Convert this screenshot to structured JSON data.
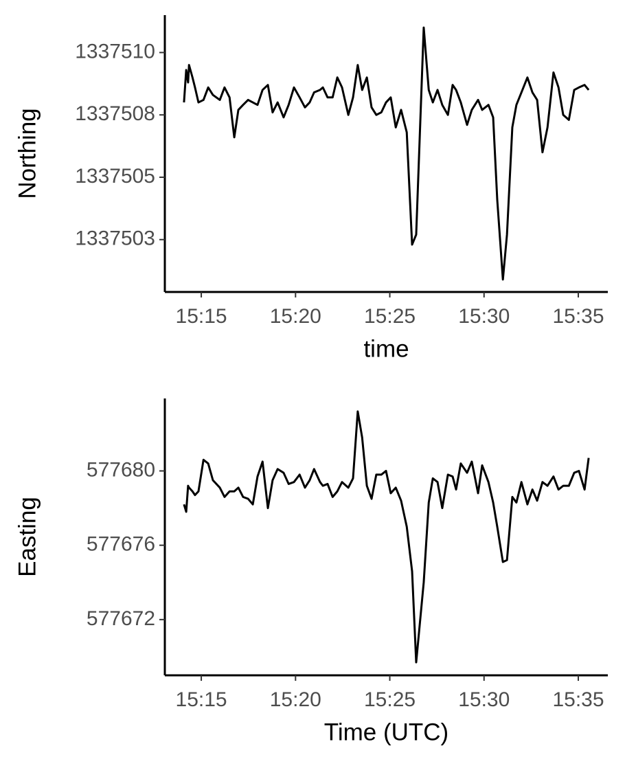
{
  "chart_data": [
    {
      "type": "line",
      "ylabel": "Northing",
      "xlabel": "time",
      "color": "#000000",
      "x": [
        "15:14:05",
        "15:14:12",
        "15:14:18",
        "15:14:21",
        "15:14:32",
        "15:14:40",
        "15:14:51",
        "15:15:07",
        "15:15:22",
        "15:15:37",
        "15:15:59",
        "15:16:14",
        "15:16:30",
        "15:16:45",
        "15:16:58",
        "15:17:13",
        "15:17:29",
        "15:17:44",
        "15:17:59",
        "15:18:15",
        "15:18:32",
        "15:18:47",
        "15:19:03",
        "15:19:22",
        "15:19:38",
        "15:19:55",
        "15:20:13",
        "15:20:30",
        "15:20:45",
        "15:20:59",
        "15:21:18",
        "15:21:27",
        "15:21:42",
        "15:21:58",
        "15:22:13",
        "15:22:28",
        "15:22:48",
        "15:23:03",
        "15:23:18",
        "15:23:32",
        "15:23:47",
        "15:24:02",
        "15:24:17",
        "15:24:33",
        "15:24:48",
        "15:25:03",
        "15:25:19",
        "15:25:36",
        "15:25:54",
        "15:26:11",
        "15:26:24",
        "15:26:48",
        "15:27:04",
        "15:27:17",
        "15:27:32",
        "15:27:47",
        "15:28:05",
        "15:28:20",
        "15:28:31",
        "15:28:46",
        "15:29:06",
        "15:29:21",
        "15:29:41",
        "15:29:54",
        "15:30:14",
        "15:30:29",
        "15:30:42",
        "15:31:00",
        "15:31:13",
        "15:31:30",
        "15:31:43",
        "15:31:59",
        "15:32:18",
        "15:32:34",
        "15:32:49",
        "15:33:06",
        "15:33:22",
        "15:33:41",
        "15:33:57",
        "15:34:12",
        "15:34:30",
        "15:34:47",
        "15:35:02",
        "15:35:20",
        "15:35:33"
      ],
      "values": [
        1337508.0,
        1337509.3,
        1337508.8,
        1337509.5,
        1337509.0,
        1337508.6,
        1337508.0,
        1337508.1,
        1337508.6,
        1337508.3,
        1337508.1,
        1337508.6,
        1337508.2,
        1337506.6,
        1337507.7,
        1337507.9,
        1337508.1,
        1337508.0,
        1337507.9,
        1337508.5,
        1337508.7,
        1337507.6,
        1337508.0,
        1337507.4,
        1337507.9,
        1337508.6,
        1337508.2,
        1337507.8,
        1337508.0,
        1337508.4,
        1337508.5,
        1337508.6,
        1337508.2,
        1337508.2,
        1337509.0,
        1337508.6,
        1337507.5,
        1337508.2,
        1337509.5,
        1337508.5,
        1337509.0,
        1337507.8,
        1337507.5,
        1337507.6,
        1337508.0,
        1337508.2,
        1337507.0,
        1337507.7,
        1337506.8,
        1337502.3,
        1337502.7,
        1337511.0,
        1337508.5,
        1337508.0,
        1337508.5,
        1337507.9,
        1337507.5,
        1337508.7,
        1337508.5,
        1337508.0,
        1337507.1,
        1337507.7,
        1337508.1,
        1337507.7,
        1337507.9,
        1337507.4,
        1337504.1,
        1337500.9,
        1337502.7,
        1337507.0,
        1337507.9,
        1337508.4,
        1337509.0,
        1337508.4,
        1337508.1,
        1337506.0,
        1337507.0,
        1337509.2,
        1337508.6,
        1337507.5,
        1337507.3,
        1337508.5,
        1337508.6,
        1337508.7,
        1337508.5
      ],
      "xlim": [
        "15:13:04",
        "15:36:34"
      ],
      "xticks": [
        "15:15",
        "15:20",
        "15:25",
        "15:30",
        "15:35"
      ],
      "ylim": [
        1337500.4,
        1337511.5
      ],
      "yticks": [
        {
          "value": 1337502.5,
          "label": "1337503"
        },
        1337505,
        {
          "value": 1337507.5,
          "label": "1337508"
        },
        1337510
      ]
    },
    {
      "type": "line",
      "ylabel": "Easting",
      "xlabel": "Time (UTC)",
      "color": "#000000",
      "x": [
        "15:14:05",
        "15:14:12",
        "15:14:18",
        "15:14:21",
        "15:14:32",
        "15:14:40",
        "15:14:51",
        "15:15:07",
        "15:15:22",
        "15:15:37",
        "15:15:59",
        "15:16:14",
        "15:16:30",
        "15:16:45",
        "15:16:58",
        "15:17:13",
        "15:17:29",
        "15:17:44",
        "15:17:59",
        "15:18:15",
        "15:18:32",
        "15:18:47",
        "15:19:03",
        "15:19:22",
        "15:19:38",
        "15:19:55",
        "15:20:13",
        "15:20:30",
        "15:20:45",
        "15:20:59",
        "15:21:18",
        "15:21:27",
        "15:21:42",
        "15:21:58",
        "15:22:13",
        "15:22:28",
        "15:22:48",
        "15:23:03",
        "15:23:18",
        "15:23:32",
        "15:23:47",
        "15:24:02",
        "15:24:17",
        "15:24:33",
        "15:24:48",
        "15:25:03",
        "15:25:19",
        "15:25:36",
        "15:25:54",
        "15:26:11",
        "15:26:24",
        "15:26:48",
        "15:27:04",
        "15:27:17",
        "15:27:32",
        "15:27:47",
        "15:28:05",
        "15:28:20",
        "15:28:31",
        "15:28:46",
        "15:29:06",
        "15:29:21",
        "15:29:41",
        "15:29:54",
        "15:30:14",
        "15:30:29",
        "15:30:42",
        "15:31:00",
        "15:31:13",
        "15:31:30",
        "15:31:43",
        "15:31:59",
        "15:32:18",
        "15:32:34",
        "15:32:49",
        "15:33:06",
        "15:33:22",
        "15:33:41",
        "15:33:57",
        "15:34:12",
        "15:34:30",
        "15:34:47",
        "15:35:02",
        "15:35:20",
        "15:35:33"
      ],
      "values": [
        577678.2,
        577677.8,
        577679.2,
        577679.1,
        577678.9,
        577678.7,
        577678.9,
        577680.6,
        577680.4,
        577679.5,
        577679.1,
        577678.6,
        577678.9,
        577678.9,
        577679.1,
        577678.6,
        577678.5,
        577678.2,
        577679.7,
        577680.5,
        577678.0,
        577679.5,
        577680.1,
        577679.9,
        577679.3,
        577679.4,
        577679.8,
        577679.1,
        577679.5,
        577680.1,
        577679.4,
        577679.2,
        577679.3,
        577678.6,
        577678.9,
        577679.4,
        577679.1,
        577679.6,
        577683.2,
        577681.8,
        577679.2,
        577678.5,
        577679.8,
        577679.8,
        577680.0,
        577678.8,
        577679.1,
        577678.4,
        577677.0,
        577674.6,
        577669.7,
        577674.0,
        577678.3,
        577679.6,
        577679.4,
        577678.0,
        577679.8,
        577679.7,
        577679.0,
        577680.4,
        577679.9,
        577680.5,
        577678.8,
        577680.3,
        577679.4,
        577678.3,
        577677.0,
        577675.1,
        577675.2,
        577678.6,
        577678.3,
        577679.4,
        577678.2,
        577679.0,
        577678.4,
        577679.4,
        577679.2,
        577679.7,
        577679.0,
        577679.2,
        577679.2,
        577679.9,
        577680.0,
        577679.0,
        577680.7
      ],
      "xlim": [
        "15:13:04",
        "15:36:34"
      ],
      "xticks": [
        "15:15",
        "15:20",
        "15:25",
        "15:30",
        "15:35"
      ],
      "ylim": [
        577669.0,
        577683.9
      ],
      "yticks": [
        577672,
        577676,
        577680
      ]
    }
  ]
}
